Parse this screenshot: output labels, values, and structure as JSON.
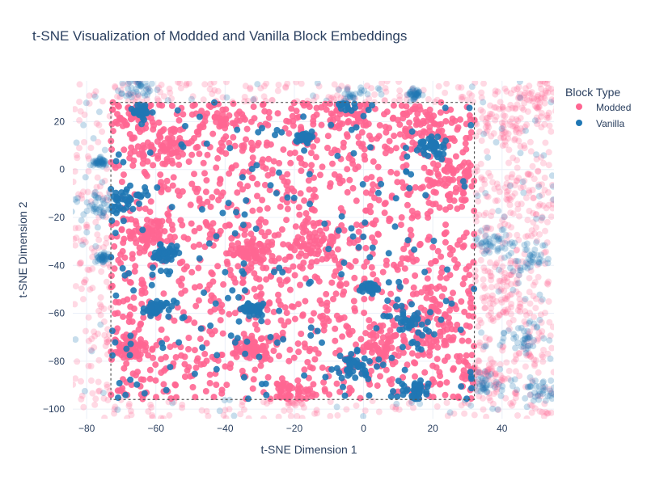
{
  "chart_data": {
    "type": "scatter",
    "title": "t-SNE Visualization of Modded and Vanilla Block Embeddings",
    "xlabel": "t-SNE Dimension 1",
    "ylabel": "t-SNE Dimension 2",
    "xlim": [
      -84,
      55
    ],
    "ylim": [
      -104,
      37
    ],
    "xticks": [
      -80,
      -60,
      -40,
      -20,
      0,
      20,
      40
    ],
    "yticks": [
      -100,
      -80,
      -60,
      -40,
      -20,
      0,
      20
    ],
    "xtick_labels": [
      "−80",
      "−60",
      "−40",
      "−20",
      "0",
      "20",
      "40"
    ],
    "ytick_labels": [
      "−100",
      "−80",
      "−60",
      "−40",
      "−20",
      "0",
      "20"
    ],
    "grid": true,
    "selection_box": {
      "x0": -73,
      "x1": 32,
      "y0": -96,
      "y1": 28
    },
    "legend": {
      "title": "Block Type",
      "placement": "top-right",
      "entries": [
        {
          "name": "Modded",
          "color": "#ff6692"
        },
        {
          "name": "Vanilla",
          "color": "#1f77b4"
        }
      ]
    },
    "series": [
      {
        "name": "Modded",
        "color": "#ff6692",
        "approx_points": 3000,
        "clusters": [
          {
            "x": -32,
            "y": -35,
            "spread": 3
          },
          {
            "x": 20,
            "y": -68,
            "spread": 5
          },
          {
            "x": 25,
            "y": -5,
            "spread": 4
          },
          {
            "x": -65,
            "y": 22,
            "spread": 4
          },
          {
            "x": -55,
            "y": 10,
            "spread": 5
          },
          {
            "x": -62,
            "y": -27,
            "spread": 3
          },
          {
            "x": -67,
            "y": -75,
            "spread": 3
          },
          {
            "x": -32,
            "y": -76,
            "spread": 3
          },
          {
            "x": -5,
            "y": 22,
            "spread": 5
          },
          {
            "x": 15,
            "y": 20,
            "spread": 5
          },
          {
            "x": -40,
            "y": 20,
            "spread": 5
          },
          {
            "x": -15,
            "y": -30,
            "spread": 4
          },
          {
            "x": 5,
            "y": -75,
            "spread": 4
          },
          {
            "x": -20,
            "y": -95,
            "spread": 3
          },
          {
            "x": 40,
            "y": 20,
            "spread": 5
          },
          {
            "x": 45,
            "y": -10,
            "spread": 6
          },
          {
            "x": 40,
            "y": -50,
            "spread": 6
          },
          {
            "x": 50,
            "y": 30,
            "spread": 4
          },
          {
            "x": 35,
            "y": -85,
            "spread": 4
          }
        ]
      },
      {
        "name": "Vanilla",
        "color": "#1f77b4",
        "approx_points": 1200,
        "clusters": [
          {
            "x": 14,
            "y": -65,
            "spread": 4
          },
          {
            "x": -68,
            "y": -12,
            "spread": 3
          },
          {
            "x": -3,
            "y": -82,
            "spread": 2.5
          },
          {
            "x": 15,
            "y": -93,
            "spread": 3
          },
          {
            "x": -32,
            "y": -58,
            "spread": 1.5
          },
          {
            "x": -57,
            "y": -35,
            "spread": 2
          },
          {
            "x": -64,
            "y": 24,
            "spread": 1.2
          },
          {
            "x": 20,
            "y": 10,
            "spread": 2
          },
          {
            "x": -17,
            "y": 13,
            "spread": 1
          },
          {
            "x": 2,
            "y": -49,
            "spread": 1
          },
          {
            "x": 15,
            "y": 31,
            "spread": 1
          },
          {
            "x": -76,
            "y": 3,
            "spread": 1
          },
          {
            "x": -75,
            "y": -37,
            "spread": 1
          },
          {
            "x": -60,
            "y": -58,
            "spread": 1.5
          },
          {
            "x": -3,
            "y": 30,
            "spread": 3
          },
          {
            "x": -65,
            "y": 35,
            "spread": 3
          },
          {
            "x": 48,
            "y": -37,
            "spread": 3
          },
          {
            "x": 45,
            "y": -70,
            "spread": 3
          },
          {
            "x": 38,
            "y": -30,
            "spread": 3
          },
          {
            "x": -77,
            "y": -15,
            "spread": 3
          },
          {
            "x": 52,
            "y": -92,
            "spread": 3
          },
          {
            "x": 35,
            "y": -90,
            "spread": 3
          }
        ]
      }
    ]
  }
}
